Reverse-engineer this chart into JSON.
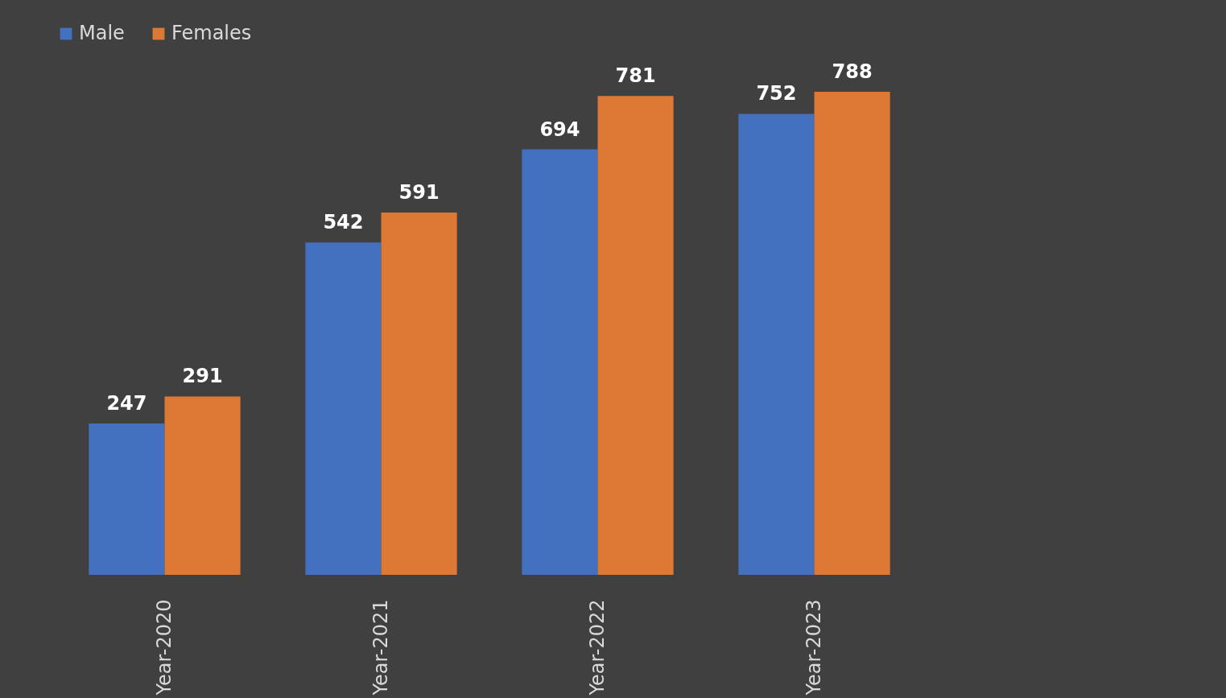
{
  "chart_data": {
    "type": "bar",
    "categories": [
      "Year-2020",
      "Year-2021",
      "Year-2022",
      "Year-2023"
    ],
    "series": [
      {
        "name": "Male",
        "color": "#4470c0",
        "values": [
          247,
          542,
          694,
          752
        ]
      },
      {
        "name": "Females",
        "color": "#dd7835",
        "values": [
          291,
          591,
          781,
          788
        ]
      }
    ],
    "data_labels": true,
    "legend": "top"
  }
}
